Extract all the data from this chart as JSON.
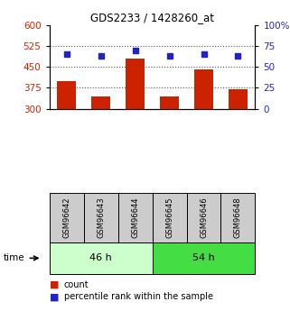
{
  "title": "GDS2233 / 1428260_at",
  "samples": [
    "GSM96642",
    "GSM96643",
    "GSM96644",
    "GSM96645",
    "GSM96646",
    "GSM96648"
  ],
  "count_values": [
    400,
    345,
    480,
    345,
    440,
    370
  ],
  "percentile_values": [
    65,
    63,
    70,
    63,
    65,
    63
  ],
  "bar_color": "#cc2200",
  "dot_color": "#2222cc",
  "bar_bottom": 300,
  "ylim_left": [
    300,
    600
  ],
  "ylim_right": [
    0,
    100
  ],
  "yticks_left": [
    300,
    375,
    450,
    525,
    600
  ],
  "yticks_right": [
    0,
    25,
    50,
    75,
    100
  ],
  "group1_label": "46 h",
  "group2_label": "54 h",
  "time_label": "time",
  "legend_count": "count",
  "legend_percentile": "percentile rank within the sample",
  "group1_color": "#ccffcc",
  "group2_color": "#44dd44",
  "sample_box_color": "#cccccc",
  "left_axis_color": "#cc2200",
  "right_axis_color": "#2222cc",
  "bar_width": 0.55
}
